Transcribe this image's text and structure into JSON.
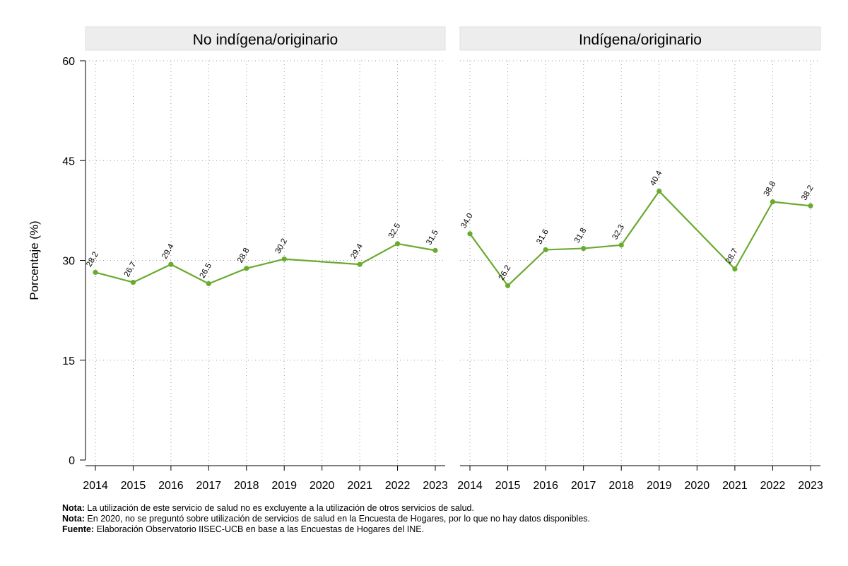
{
  "chart_data": {
    "type": "line",
    "ylabel": "Porcentaje (%)",
    "ylim": [
      0,
      60
    ],
    "yticks": [
      0,
      15,
      30,
      45,
      60
    ],
    "x": [
      "2014",
      "2015",
      "2016",
      "2017",
      "2018",
      "2019",
      "2020",
      "2021",
      "2022",
      "2023"
    ],
    "grid": true,
    "line_color": "#6aaa2f",
    "panel_header_color": "#ededed",
    "panels": [
      {
        "title": "No indígena/originario",
        "values": [
          28.2,
          26.7,
          29.4,
          26.5,
          28.8,
          30.2,
          null,
          29.4,
          32.5,
          31.5
        ],
        "labels": [
          "28.2",
          "26.7",
          "29.4",
          "26.5",
          "28.8",
          "30.2",
          "",
          "29.4",
          "32.5",
          "31.5"
        ]
      },
      {
        "title": "Indígena/originario",
        "values": [
          34.0,
          26.2,
          31.6,
          31.8,
          32.3,
          40.4,
          null,
          28.7,
          38.8,
          38.2
        ],
        "labels": [
          "34.0",
          "26.2",
          "31.6",
          "31.8",
          "32.3",
          "40.4",
          "",
          "28.7",
          "38.8",
          "38.2"
        ]
      }
    ]
  },
  "notes": [
    {
      "label": "Nota:",
      "text": " La utilización de este servicio de salud no es excluyente a la utilización de otros servicios de salud."
    },
    {
      "label": "Nota:",
      "text": " En 2020, no se preguntó sobre utilización de servicios de salud en la Encuesta de Hogares, por lo que no hay datos disponibles."
    },
    {
      "label": "Fuente:",
      "text": " Elaboración Observatorio IISEC-UCB en base a las Encuestas de Hogares del INE."
    }
  ]
}
